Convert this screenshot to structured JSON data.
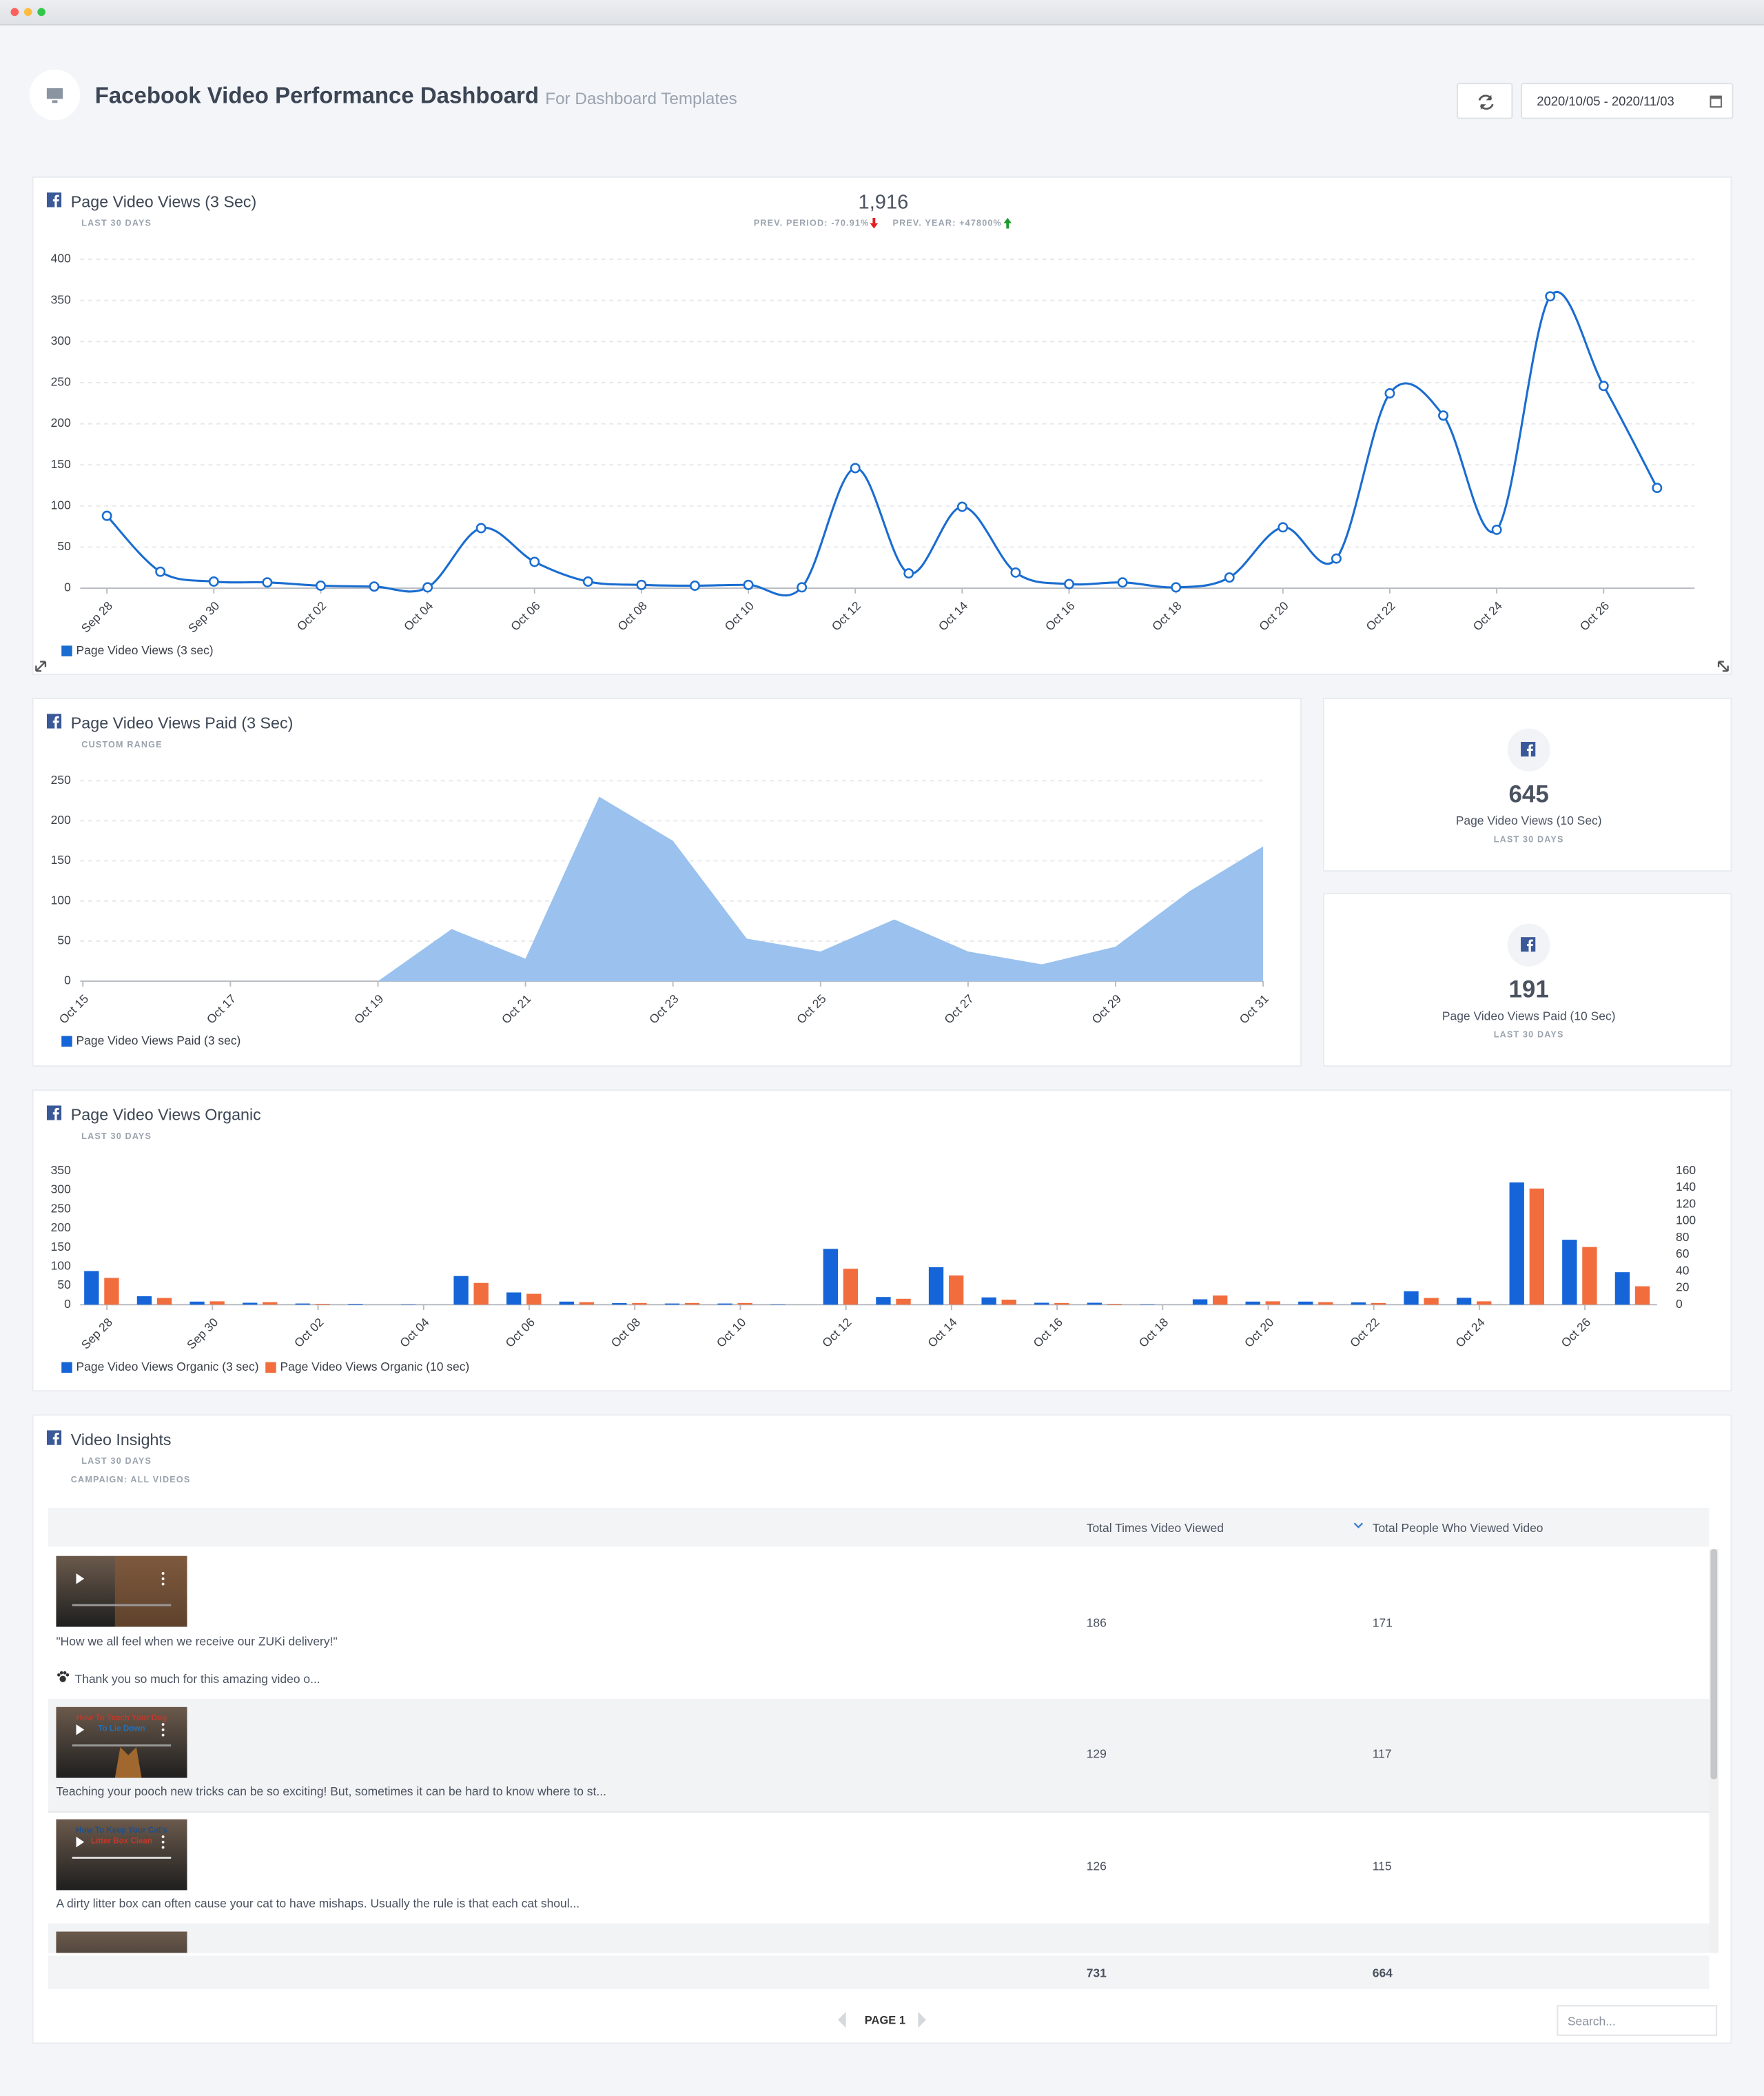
{
  "header": {
    "title": "Facebook Video Performance Dashboard",
    "subtitle": "For Dashboard Templates",
    "date_range": "2020/10/05 - 2020/11/03"
  },
  "chart_data": [
    {
      "type": "line",
      "title": "Page Video Views (3 Sec)",
      "subtitle": "LAST 30 DAYS",
      "total": "1,916",
      "prev_period": "PREV. PERIOD: -70.91%",
      "prev_year": "PREV. YEAR: +47800%",
      "categories": [
        "Sep 28",
        null,
        "Sep 30",
        null,
        "Oct 02",
        null,
        "Oct 04",
        null,
        "Oct 06",
        null,
        "Oct 08",
        null,
        "Oct 10",
        null,
        "Oct 12",
        null,
        "Oct 14",
        null,
        "Oct 16",
        null,
        "Oct 18",
        null,
        "Oct 20",
        null,
        "Oct 22",
        null,
        "Oct 24",
        null,
        "Oct 26",
        null
      ],
      "series": [
        {
          "name": "Page Video Views (3 sec)",
          "color": "#1a6dd0",
          "values": [
            88,
            20,
            8,
            7,
            3,
            2,
            1,
            73,
            32,
            8,
            4,
            3,
            4,
            1,
            146,
            18,
            99,
            19,
            5,
            7,
            1,
            13,
            74,
            36,
            237,
            210,
            71,
            355,
            246,
            122
          ]
        }
      ],
      "ylim": [
        0,
        400
      ],
      "yticks": [
        0,
        50,
        100,
        150,
        200,
        250,
        300,
        350,
        400
      ],
      "grid": true,
      "legend": "bottom-left"
    },
    {
      "type": "area",
      "title": "Page Video Views Paid (3 Sec)",
      "subtitle": "CUSTOM RANGE",
      "categories": [
        "Oct 15",
        null,
        "Oct 17",
        null,
        "Oct 19",
        null,
        "Oct 21",
        null,
        "Oct 23",
        null,
        "Oct 25",
        null,
        "Oct 27",
        null,
        "Oct 29",
        null,
        "Oct 31"
      ],
      "series": [
        {
          "name": "Page Video Views Paid (3 sec)",
          "color": "#9bc1ee",
          "values": [
            0,
            0,
            0,
            0,
            0,
            65,
            28,
            230,
            175,
            53,
            37,
            77,
            37,
            21,
            43,
            112,
            168
          ]
        }
      ],
      "ylim": [
        0,
        250
      ],
      "yticks": [
        0,
        50,
        100,
        150,
        200,
        250
      ],
      "grid": true,
      "legend": "bottom-left"
    },
    {
      "type": "bar",
      "title": "Page Video Views Organic",
      "subtitle": "LAST 30 DAYS",
      "categories": [
        "Sep 28",
        null,
        "Sep 30",
        null,
        "Oct 02",
        null,
        "Oct 04",
        null,
        "Oct 06",
        null,
        "Oct 08",
        null,
        "Oct 10",
        null,
        "Oct 12",
        null,
        "Oct 14",
        null,
        "Oct 16",
        null,
        "Oct 18",
        null,
        "Oct 20",
        null,
        "Oct 22",
        null,
        "Oct 24",
        null,
        "Oct 26",
        null
      ],
      "series": [
        {
          "name": "Page Video Views Organic (3 sec)",
          "color": "#1565d8",
          "values": [
            88,
            22,
            8,
            5,
            3,
            2,
            1,
            75,
            32,
            8,
            4,
            3,
            3,
            1,
            146,
            20,
            98,
            19,
            5,
            5,
            1,
            14,
            8,
            8,
            6,
            35,
            18,
            320,
            170,
            85
          ]
        },
        {
          "name": "Page Video Views Organic (10 sec)",
          "color": "#f26d3d",
          "axis": "y2",
          "values": [
            32,
            8,
            4,
            3,
            1,
            0,
            0,
            26,
            13,
            3,
            2,
            2,
            2,
            0,
            43,
            7,
            35,
            6,
            2,
            1,
            0,
            11,
            4,
            3,
            2,
            8,
            4,
            139,
            69,
            22
          ]
        }
      ],
      "ylim": [
        0,
        350
      ],
      "yticks": [
        0,
        50,
        100,
        150,
        200,
        250,
        300,
        350
      ],
      "y2lim": [
        0,
        160
      ],
      "y2ticks": [
        0,
        20,
        40,
        60,
        80,
        100,
        120,
        140,
        160
      ],
      "grid": false,
      "legend": "bottom-left"
    }
  ],
  "widgets": [
    {
      "value": 645,
      "label": "Page Video Views (10 Sec)",
      "period": "LAST 30 DAYS"
    },
    {
      "value": 191,
      "label": "Page Video Views Paid (10 Sec)",
      "period": "LAST 30 DAYS"
    }
  ],
  "table": {
    "title": "Video Insights",
    "subtitle": "LAST 30 DAYS",
    "campaign": "CAMPAIGN: ALL VIDEOS",
    "columns": [
      "Total Times Video Viewed",
      "Total People Who Viewed Video"
    ],
    "rows": [
      {
        "caption": [
          "\"How we all feel when we receive our ZUKi delivery!\"",
          "Thank you so much for this amazing video o..."
        ],
        "values": [
          186,
          171
        ]
      },
      {
        "thumb_text": [
          "How To Teach Your Dog",
          "To Lie Down"
        ],
        "caption": [
          "Teaching your pooch new tricks can be so exciting! But, sometimes it can be hard to know where to st..."
        ],
        "values": [
          129,
          117
        ]
      },
      {
        "thumb_text": [
          "How To Keep Your Cat's",
          "Litter Box Clean"
        ],
        "caption": [
          "A dirty litter box can often cause your cat to have mishaps. Usually the rule is that each cat shoul..."
        ],
        "values": [
          126,
          115
        ]
      }
    ],
    "totals": [
      731,
      664
    ],
    "page": "PAGE 1",
    "search": "Search..."
  }
}
